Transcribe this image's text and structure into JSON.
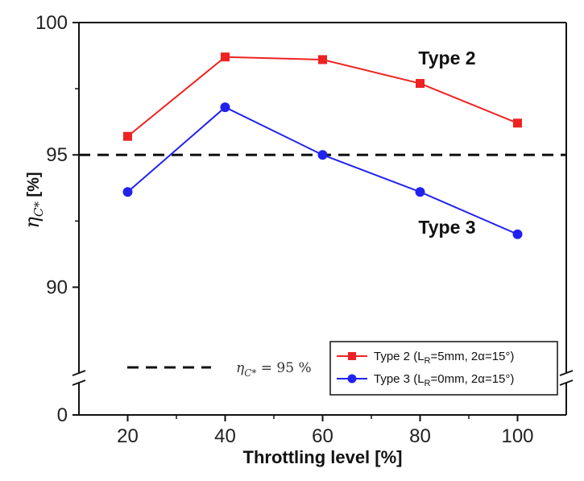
{
  "chart_data": {
    "type": "line",
    "x": [
      20,
      40,
      60,
      80,
      100
    ],
    "xlabel": "Throttling level [%]",
    "xlim": [
      10,
      110
    ],
    "xticks": [
      "20",
      "40",
      "60",
      "80",
      "100"
    ],
    "ylabel": {
      "symbol": "η",
      "subscript": "C*",
      "unit": "[%]"
    },
    "ylim": [
      87,
      100
    ],
    "yticks": [
      "0",
      "90",
      "95",
      "100"
    ],
    "axis_break": true,
    "grid": false,
    "series": [
      {
        "name": "Type 2 (L",
        "legend_sub": "R",
        "legend_rest": "=5mm, 2α=15°)",
        "tag": "Type 2",
        "color": "#ee2222",
        "marker": "square",
        "values": [
          95.7,
          98.7,
          98.6,
          97.7,
          96.2
        ]
      },
      {
        "name": "Type 3 (L",
        "legend_sub": "R",
        "legend_rest": "=0mm, 2α=15°)",
        "tag": "Type 3",
        "color": "#2222ee",
        "marker": "circle",
        "values": [
          93.6,
          96.8,
          95.0,
          93.6,
          92.0
        ]
      }
    ],
    "reference_line": {
      "value": 95,
      "symbol": "η",
      "subscript": "C*",
      "text": " = 95 %",
      "style": "dashed",
      "color": "#111111"
    },
    "legend_position": "bottom-right"
  }
}
